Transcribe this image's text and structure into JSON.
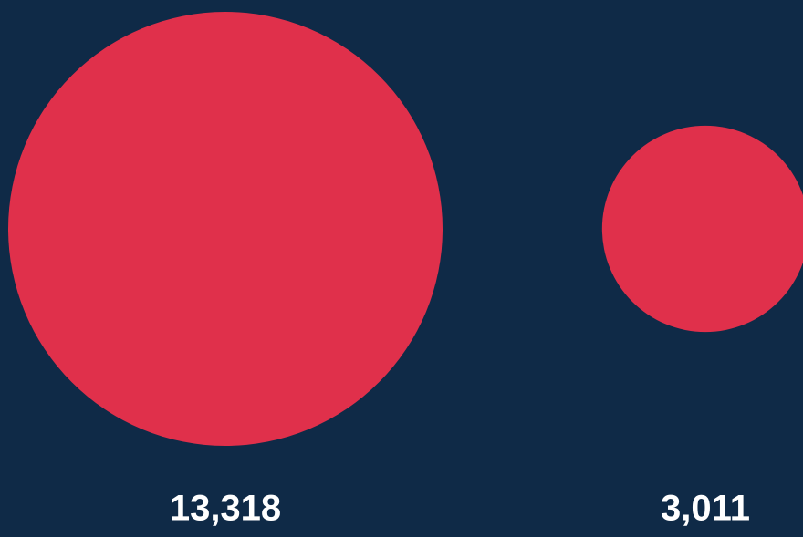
{
  "chart_data": {
    "type": "bubble",
    "values": [
      13318,
      3011
    ],
    "labels": [
      "13,318",
      "3,011"
    ]
  },
  "colors": {
    "background": "#0f2a47",
    "bubble": "#e0304b",
    "label": "#ffffff"
  }
}
